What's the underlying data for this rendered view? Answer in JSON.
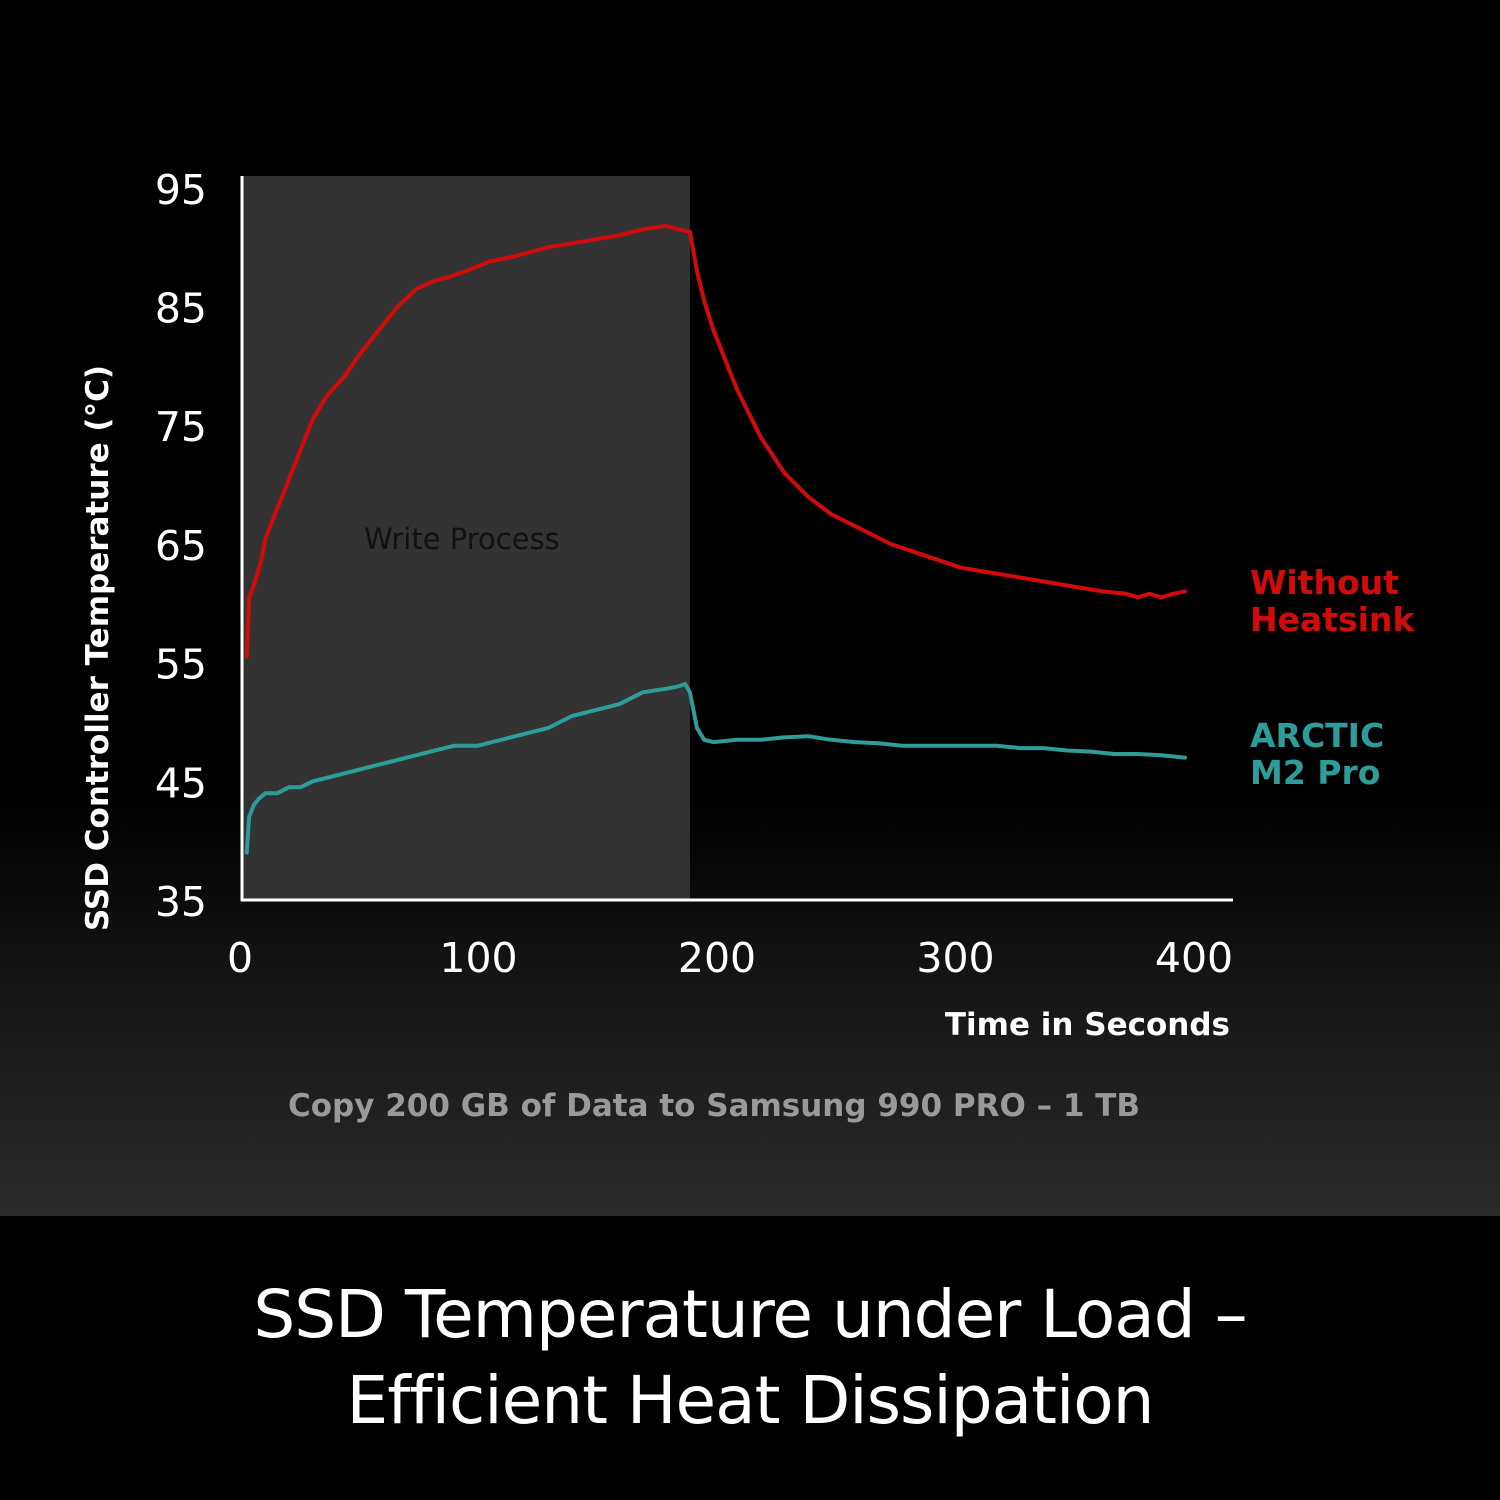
{
  "colors": {
    "background": "#000000",
    "write_region": "#333333",
    "axis": "#ffffff",
    "tick_label": "#ffffff",
    "without_heatsink": "#d10a0a",
    "arctic_m2_pro": "#2e9c98",
    "caption": "#9a9a9a",
    "headline": "#ffffff"
  },
  "chart_data": {
    "type": "line",
    "xlabel": "Time in Seconds",
    "ylabel": "SSD Controller Temperature (°C)",
    "xlim": [
      0,
      400
    ],
    "ylim": [
      35,
      96
    ],
    "x_ticks": [
      "0",
      "100",
      "200",
      "300",
      "400"
    ],
    "y_ticks": [
      "95",
      "85",
      "75",
      "65",
      "55",
      "45",
      "35"
    ],
    "grid": false,
    "legend": "right",
    "shaded_region": {
      "x_start": 0,
      "x_end": 190,
      "label": "Write Process"
    },
    "series": [
      {
        "name": "Without Heatsink",
        "name_lines": [
          "Without",
          "Heatsink"
        ],
        "color": "#d10a0a",
        "x": [
          2,
          3,
          5,
          8,
          10,
          13,
          17,
          21,
          25,
          30,
          36,
          43,
          50,
          58,
          66,
          74,
          82,
          88,
          95,
          105,
          115,
          130,
          145,
          160,
          170,
          180,
          185,
          190,
          193,
          196,
          200,
          210,
          220,
          230,
          240,
          250,
          260,
          275,
          290,
          305,
          320,
          335,
          350,
          365,
          375,
          380,
          385,
          390,
          395,
          400
        ],
        "y": [
          55.5,
          60.5,
          61.5,
          63.5,
          65.5,
          67,
          69,
          71,
          73,
          75.5,
          77.5,
          79,
          81,
          83,
          85,
          86.5,
          87.2,
          87.5,
          88,
          88.8,
          89.2,
          90,
          90.5,
          91,
          91.5,
          91.8,
          91.5,
          91.3,
          88,
          85.5,
          83,
          78,
          74,
          71,
          69,
          67.5,
          66.5,
          65,
          64,
          63,
          62.5,
          62,
          61.5,
          61,
          60.8,
          60.5,
          60.8,
          60.5,
          60.8,
          61
        ]
      },
      {
        "name": "ARCTIC M2 Pro",
        "name_lines": [
          "ARCTIC",
          "M2 Pro"
        ],
        "color": "#2e9c98",
        "x": [
          2,
          3,
          5,
          7,
          10,
          15,
          20,
          25,
          30,
          40,
          50,
          60,
          70,
          80,
          90,
          100,
          110,
          120,
          130,
          140,
          150,
          160,
          170,
          180,
          185,
          188,
          190,
          193,
          196,
          200,
          210,
          220,
          230,
          240,
          250,
          260,
          270,
          280,
          290,
          300,
          310,
          320,
          330,
          340,
          350,
          360,
          370,
          380,
          390,
          400
        ],
        "y": [
          39,
          42,
          43,
          43.5,
          44,
          44,
          44.5,
          44.5,
          45,
          45.5,
          46,
          46.5,
          47,
          47.5,
          48,
          48,
          48.5,
          49,
          49.5,
          50.5,
          51,
          51.5,
          52.5,
          52.8,
          53,
          53.2,
          52.5,
          49.5,
          48.5,
          48.3,
          48.5,
          48.5,
          48.7,
          48.8,
          48.5,
          48.3,
          48.2,
          48,
          48,
          48,
          48,
          48,
          47.8,
          47.8,
          47.6,
          47.5,
          47.3,
          47.3,
          47.2,
          47
        ]
      }
    ]
  },
  "caption": "Copy 200 GB of Data to Samsung 990 PRO  – 1 TB",
  "headline": {
    "line1": "SSD Temperature under Load –",
    "line2": "Efficient Heat Dissipation"
  }
}
